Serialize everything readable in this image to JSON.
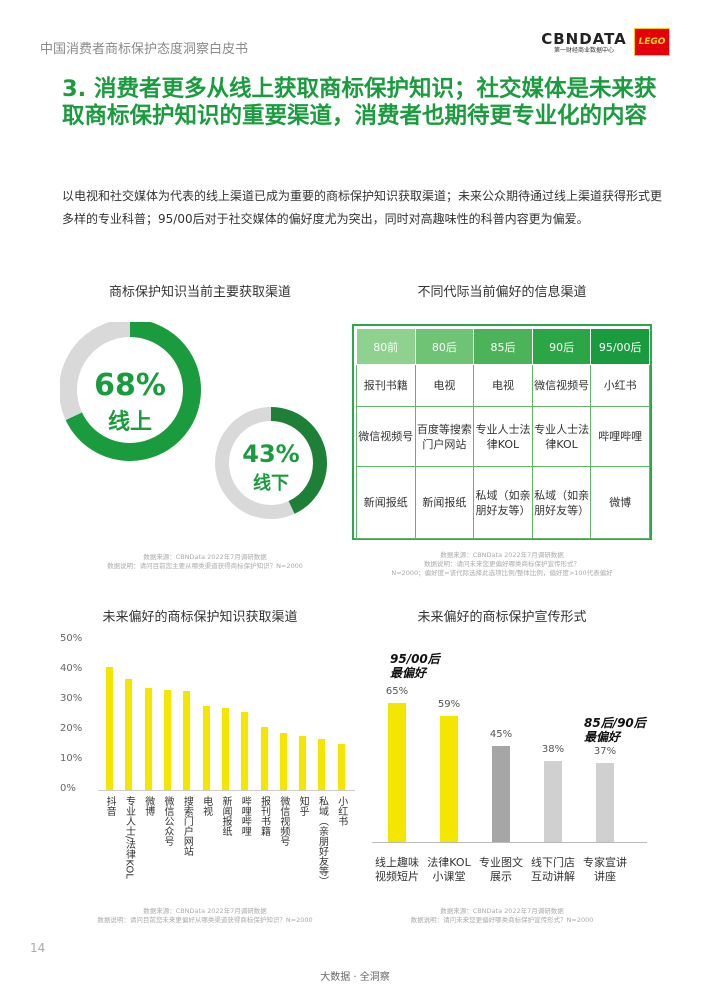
{
  "header": {
    "title": "中国消费者商标保护态度洞察白皮书",
    "brand_main": "CBNDATA",
    "brand_sub": "第一财经商业数据中心",
    "partner_logo": "LEGO"
  },
  "heading": "3. 消费者更多从线上获取商标保护知识；社交媒体是未来获取商标保护知识的重要渠道，消费者也期待更专业化的内容",
  "intro": "以电视和社交媒体为代表的线上渠道已成为重要的商标保护知识获取渠道；未来公众期待通过线上渠道获得形式更多样的专业科普；95/00后对于社交媒体的偏好度尤为突出，同时对高趣味性的科普内容更为偏爱。",
  "donut_section": {
    "title": "商标保护知识当前主要获取渠道",
    "online_value": "68%",
    "online_label": "线上",
    "offline_value": "43%",
    "offline_label": "线下",
    "note_line1": "数据来源：CBNData 2022年7月调研数据",
    "note_line2": "数据说明：请问目前您主要从哪类渠道获得商标保护知识？N=2000",
    "colors": {
      "green": "#1a9c3e",
      "dark_green": "#1e7f37",
      "grey": "#d9d9d9"
    }
  },
  "table_section": {
    "title": "不同代际当前偏好的信息渠道",
    "headers": [
      "80前",
      "80后",
      "85后",
      "90后",
      "95/00后"
    ],
    "header_colors": [
      "#8fd18f",
      "#6fc374",
      "#4db35a",
      "#2ba647",
      "#1a9c3e"
    ],
    "rows": [
      [
        "报刊书籍",
        "电视",
        "电视",
        "微信视频号",
        "小红书"
      ],
      [
        "微信视频号",
        "百度等搜索门户网站",
        "专业人士法律KOL",
        "专业人士法律KOL",
        "哔哩哔哩"
      ],
      [
        "新闻报纸",
        "新闻报纸",
        "私域（如亲朋好友等）",
        "私域（如亲朋好友等）",
        "微博"
      ]
    ],
    "note_line1": "数据来源：CBNData 2022年7月调研数据",
    "note_line2": "数据说明：请问未来您更偏好哪类商标保护宣传形式？",
    "note_line3": "N=2000；偏好度=该代际选择此选项比例/整体比例，偏好度>100代表偏好"
  },
  "chart_data": [
    {
      "type": "bar",
      "title": "未来偏好的商标保护知识获取渠道",
      "categories": [
        "抖音",
        "专业人士/法律KOL",
        "微博",
        "微信公众号",
        "搜索门户网站",
        "电视",
        "新闻报纸",
        "哔哩哔哩",
        "报刊书籍",
        "微信视频号",
        "知乎",
        "私域（亲朋好友等）",
        "小红书"
      ],
      "values": [
        41,
        37,
        34,
        33.5,
        33,
        28,
        27.5,
        26,
        21,
        19,
        18,
        17,
        15.5
      ],
      "y_ticks": [
        "50%",
        "40%",
        "30%",
        "20%",
        "10%",
        "0%"
      ],
      "ylim": [
        0,
        50
      ],
      "unit": "%",
      "color": "#f5e600",
      "note_line1": "数据来源：CBNData 2022年7月调研数据",
      "note_line2": "数据说明：请问目前您未来更偏好从哪类渠道获得商标保护知识？N=2000"
    },
    {
      "type": "bar",
      "title": "未来偏好的商标保护宣传形式",
      "categories": [
        "线上趣味视频短片",
        "法律KOL小课堂",
        "专业图文展示",
        "线下门店互动讲解",
        "专家宣讲讲座"
      ],
      "category_lines": [
        [
          "线上趣味",
          "视频短片"
        ],
        [
          "法律KOL",
          "小课堂"
        ],
        [
          "专业图文",
          "展示"
        ],
        [
          "线下门店",
          "互动讲解"
        ],
        [
          "专家宣讲",
          "讲座"
        ]
      ],
      "values": [
        65,
        59,
        45,
        38,
        37
      ],
      "value_labels": [
        "65%",
        "59%",
        "45%",
        "38%",
        "37%"
      ],
      "colors": [
        "#f5e600",
        "#f5e600",
        "#a6a6a6",
        "#d0d0d0",
        "#d0d0d0"
      ],
      "callouts": [
        {
          "lines": [
            "95/00后",
            "最偏好"
          ]
        },
        {
          "lines": [
            "85后/90后",
            "最偏好"
          ]
        }
      ],
      "note_line1": "数据来源：CBNData 2022年7月调研数据",
      "note_line2": "数据说明：请问未来您更偏好哪类商标保护宣传形式？N=2000"
    }
  ],
  "footer": {
    "page_number": "14",
    "tagline": "大数据 · 全洞察"
  }
}
